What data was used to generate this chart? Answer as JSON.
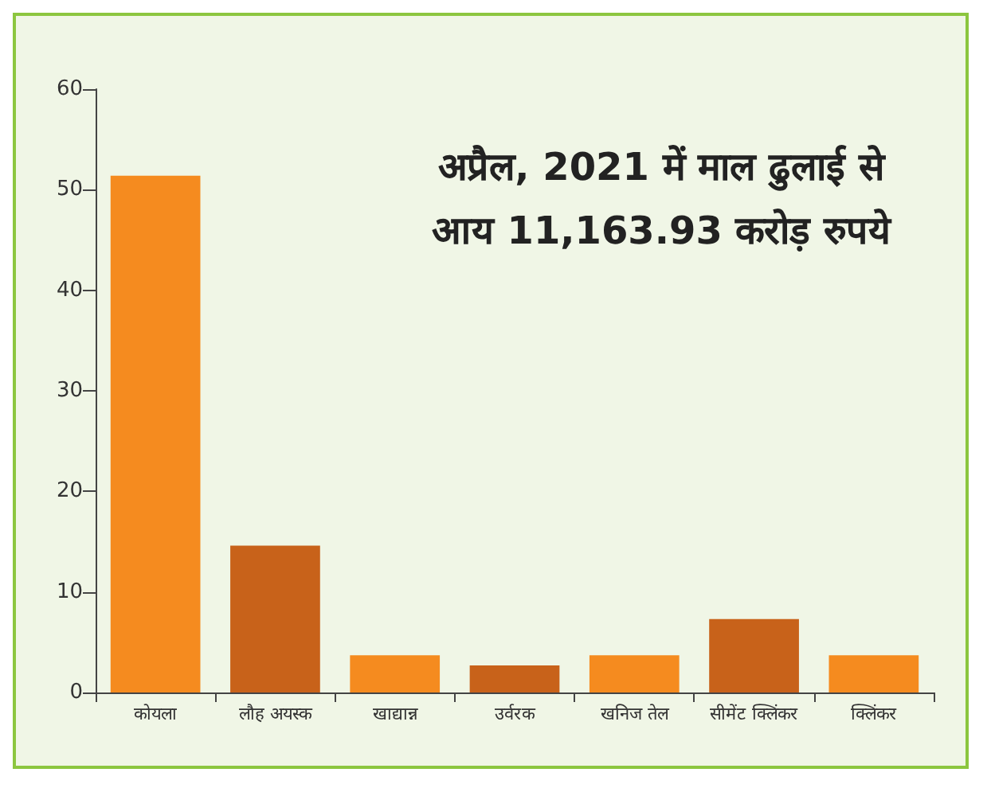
{
  "chart_data": {
    "type": "bar",
    "title": "अप्रैल, 2021 में माल ढुलाई से\nआय 11,163.93 करोड़ रुपये",
    "categories": [
      "कोयला",
      "लौह अयस्क",
      "खाद्यान्न",
      "उर्वरक",
      "खनिज तेल",
      "सीमेंट क्लिंकर",
      "क्लिंकर"
    ],
    "values": [
      51.4,
      14.6,
      3.7,
      2.7,
      3.7,
      7.3,
      3.7
    ],
    "colors": [
      "#f58b1f",
      "#c8621a",
      "#f58b1f",
      "#c8621a",
      "#f58b1f",
      "#c8621a",
      "#f58b1f"
    ],
    "ylim": [
      0,
      60
    ],
    "yticks": [
      0,
      10,
      20,
      30,
      40,
      50,
      60
    ],
    "grid": false
  }
}
